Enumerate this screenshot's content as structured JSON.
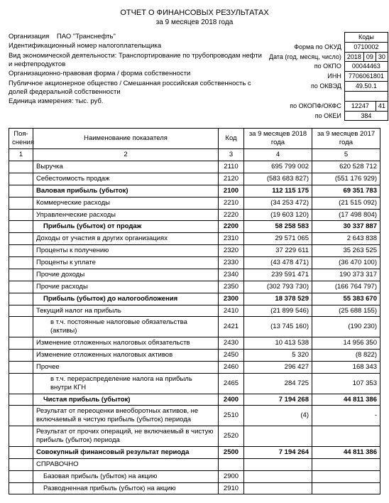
{
  "title": "ОТЧЕТ О ФИНАНСОВЫХ РЕЗУЛЬТАТАХ",
  "subtitle": "за 9 месяцев 2018 года",
  "org_label": "Организация",
  "org_value": "ПАО \"Транснефть\"",
  "inn_label": "Идентификационный номер налогоплательщика",
  "activity_label": "Вид экономической деятельности: Транспортирование по трубопроводам нефти и нефтепродуктов",
  "form_label": "Организационно-правовая форма / форма собственности",
  "form_value": "Публичное акционерное общество / Смешанная российская собственность с долей федеральной собственности",
  "unit_label": "Единица измерения: тыс. руб.",
  "codes_header": "Коды",
  "codes": {
    "okud_label": "Форма по ОКУД",
    "okud": "0710002",
    "date_label": "Дата (год, месяц, число)",
    "date_y": "2018",
    "date_m": "09",
    "date_d": "30",
    "okpo_label": "по ОКПО",
    "okpo": "00044463",
    "inn_label": "ИНН",
    "inn": "7706061801",
    "okved_label": "по ОКВЭД",
    "okved": "49.50.1",
    "okopf_label": "по ОКОПФ/ОКФС",
    "okopf1": "12247",
    "okopf2": "41",
    "okei_label": "по ОКЕИ",
    "okei": "384"
  },
  "columns": {
    "poy": "Поя-\nснения",
    "name": "Наименование показателя",
    "code": "Код",
    "y2018": "за 9 месяцев 2018 года",
    "y2017": "за 9 месяцев 2017 года",
    "n1": "1",
    "n2": "2",
    "n3": "3",
    "n4": "4",
    "n5": "5"
  },
  "rows": [
    {
      "name": "Выручка",
      "code": "2110",
      "v18": "695 799 002",
      "v17": "620 528 712"
    },
    {
      "name": "Себестоимость продаж",
      "code": "2120",
      "v18": "(583 683 827)",
      "v17": "(551 176 929)"
    },
    {
      "name": "Валовая прибыль (убыток)",
      "code": "2100",
      "v18": "112 115 175",
      "v17": "69 351 783",
      "bold": true
    },
    {
      "name": "Коммерческие расходы",
      "code": "2210",
      "v18": "(34 253 472)",
      "v17": "(21 515 092)"
    },
    {
      "name": "Управленческие расходы",
      "code": "2220",
      "v18": "(19 603 120)",
      "v17": "(17 498 804)"
    },
    {
      "name": "Прибыль (убыток) от продаж",
      "code": "2200",
      "v18": "58 258 583",
      "v17": "30 337 887",
      "bold": true,
      "indent": 1
    },
    {
      "name": "Доходы от участия в других организациях",
      "code": "2310",
      "v18": "29 571 065",
      "v17": "2 643 838"
    },
    {
      "name": "Проценты к получению",
      "code": "2320",
      "v18": "37 229 611",
      "v17": "35 263 525"
    },
    {
      "name": "Проценты к уплате",
      "code": "2330",
      "v18": "(43 478 471)",
      "v17": "(36 470 100)"
    },
    {
      "name": "Прочие доходы",
      "code": "2340",
      "v18": "239 591 471",
      "v17": "190 373 317"
    },
    {
      "name": "Прочие расходы",
      "code": "2350",
      "v18": "(302 793 730)",
      "v17": "(166 764 797)"
    },
    {
      "name": "Прибыль (убыток) до налогообложения",
      "code": "2300",
      "v18": "18 378 529",
      "v17": "55 383 670",
      "bold": true,
      "indent": 1
    },
    {
      "name": "Текущий налог на прибыль",
      "code": "2410",
      "v18": "(21 899 546)",
      "v17": "(25 688 155)"
    },
    {
      "name": "в т.ч. постоянные налоговые обязательства (активы)",
      "code": "2421",
      "v18": "(13 745 160)",
      "v17": "(190 230)",
      "indent": 2
    },
    {
      "name": "Изменение отложенных налоговых обязательств",
      "code": "2430",
      "v18": "10 413 538",
      "v17": "14 956 350"
    },
    {
      "name": "Изменение отложенных налоговых активов",
      "code": "2450",
      "v18": "5 320",
      "v17": "(8 822)"
    },
    {
      "name": "Прочее",
      "code": "2460",
      "v18": "296 427",
      "v17": "168 343"
    },
    {
      "name": "в т.ч. перераспределение налога на прибыль внутри КГН",
      "code": "2465",
      "v18": "284 725",
      "v17": "107 353",
      "indent": 2
    },
    {
      "name": "Чистая прибыль (убыток)",
      "code": "2400",
      "v18": "7 194 268",
      "v17": "44 811 386",
      "bold": true,
      "indent": 1
    },
    {
      "name": "Результат от переоценки внеоборотных активов, не включаемый в чистую прибыль (убыток) периода",
      "code": "2510",
      "v18": "(4)",
      "v17": "-"
    },
    {
      "name": "Результат от прочих операций, не включаемый в чистую прибыль (убыток) периода",
      "code": "2520",
      "v18": "",
      "v17": ""
    },
    {
      "name": "Совокупный финансовый результат периода",
      "code": "2500",
      "v18": "7 194 264",
      "v17": "44 811 386",
      "bold": true
    },
    {
      "name": "СПРАВОЧНО",
      "code": "",
      "v18": "",
      "v17": ""
    },
    {
      "name": "Базовая прибыль (убыток) на акцию",
      "code": "2900",
      "v18": "",
      "v17": "",
      "indent": 1
    },
    {
      "name": "Разводненная прибыль (убыток) на акцию",
      "code": "2910",
      "v18": "",
      "v17": "",
      "indent": 1
    }
  ]
}
